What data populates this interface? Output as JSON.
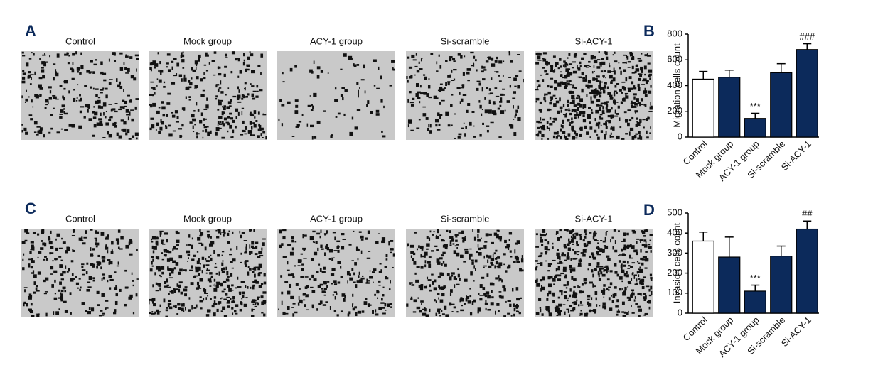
{
  "panels": [
    {
      "letter": "A",
      "captions": [
        "Control",
        "Mock group",
        "ACY-1 group",
        "Si-scramble",
        "Si-ACY-1"
      ]
    },
    {
      "letter": "C",
      "captions": [
        "Control",
        "Mock group",
        "ACY-1 group",
        "Si-scramble",
        "Si-ACY-1"
      ]
    }
  ],
  "chart_data": [
    {
      "type": "bar",
      "panel": "B",
      "y_label": "Migration cells count",
      "categories": [
        "Control",
        "Mock group",
        "ACY-1 group",
        "Si-scramble",
        "Si-ACY-1"
      ],
      "values": [
        450,
        465,
        145,
        500,
        680
      ],
      "errors": [
        60,
        55,
        40,
        70,
        45
      ],
      "value_annotations": [
        null,
        null,
        "***",
        null,
        "###"
      ],
      "colors": [
        "#ffffff",
        "#0c2a5b",
        "#0c2a5b",
        "#0c2a5b",
        "#0c2a5b"
      ],
      "ylim": [
        0,
        800
      ],
      "yticks": [
        0,
        200,
        400,
        600,
        800
      ],
      "grid": false
    },
    {
      "type": "bar",
      "panel": "D",
      "y_label": "Invasion cells count",
      "categories": [
        "Control",
        "Mock group",
        "ACY-1 group",
        "Si-scramble",
        "Si-ACY-1"
      ],
      "values": [
        360,
        280,
        110,
        285,
        420
      ],
      "errors": [
        45,
        100,
        30,
        50,
        40
      ],
      "value_annotations": [
        null,
        null,
        "***",
        null,
        "##"
      ],
      "colors": [
        "#ffffff",
        "#0c2a5b",
        "#0c2a5b",
        "#0c2a5b",
        "#0c2a5b"
      ],
      "ylim": [
        0,
        500
      ],
      "yticks": [
        0,
        100,
        200,
        300,
        400,
        500
      ],
      "grid": false
    }
  ]
}
